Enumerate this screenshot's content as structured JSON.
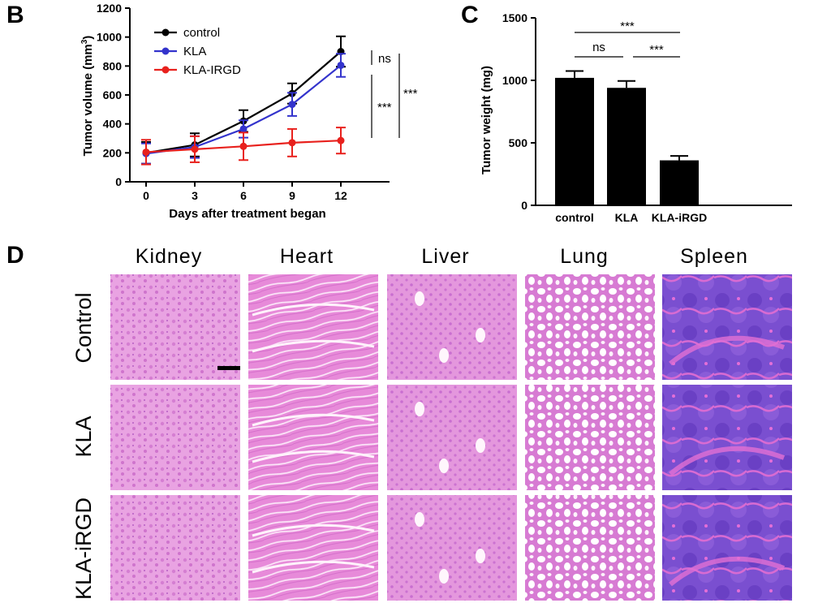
{
  "panels": {
    "B": {
      "letter": "B",
      "chart_data": {
        "type": "line",
        "x": [
          0,
          3,
          6,
          9,
          12
        ],
        "xticks": [
          "0",
          "3",
          "6",
          "9",
          "12"
        ],
        "xlim": [
          -1,
          15
        ],
        "ylim": [
          0,
          1200
        ],
        "yticks": [
          "0",
          "200",
          "400",
          "600",
          "800",
          "1000",
          "1200"
        ],
        "xlabel": "Days after treatment began",
        "ylabel": "Tumor volume (mm",
        "ylabel_sup": "3",
        "ylabel_close": ")",
        "legend_position": "top-left",
        "series": [
          {
            "name": "control",
            "color": "#000000",
            "values": [
              200,
              255,
              420,
              610,
              900
            ],
            "errors": [
              75,
              80,
              75,
              70,
              105
            ]
          },
          {
            "name": "KLA",
            "color": "#3333cc",
            "values": [
              195,
              240,
              365,
              535,
              805
            ],
            "errors": [
              70,
              75,
              60,
              80,
              80
            ]
          },
          {
            "name": "KLA-IRGD",
            "color": "#e8211d",
            "values": [
              205,
              225,
              245,
              270,
              285
            ],
            "errors": [
              85,
              90,
              95,
              95,
              90
            ]
          }
        ],
        "annotations": [
          {
            "text": "ns",
            "between": [
              "control",
              "KLA"
            ]
          },
          {
            "text": "***",
            "between": [
              "KLA",
              "KLA-IRGD"
            ]
          },
          {
            "text": "***",
            "between": [
              "control",
              "KLA-IRGD"
            ]
          }
        ]
      }
    },
    "C": {
      "letter": "C",
      "chart_data": {
        "type": "bar",
        "categories": [
          "control",
          "KLA",
          "KLA-iRGD"
        ],
        "values": [
          1020,
          940,
          360
        ],
        "errors": [
          55,
          55,
          35
        ],
        "ylim": [
          0,
          1500
        ],
        "yticks": [
          "0",
          "500",
          "1000",
          "1500"
        ],
        "ylabel": "Tumor weight (mg)",
        "bar_color": "#000000",
        "annotations": [
          {
            "text": "***",
            "between": [
              "control",
              "KLA-iRGD"
            ]
          },
          {
            "text": "ns",
            "between": [
              "control",
              "KLA"
            ]
          },
          {
            "text": "***",
            "between": [
              "KLA",
              "KLA-iRGD"
            ]
          }
        ]
      }
    },
    "D": {
      "letter": "D",
      "columns": [
        "Kidney",
        "Heart",
        "Liver",
        "Lung",
        "Spleen"
      ],
      "rows": [
        "Control",
        "KLA",
        "KLA-iRGD"
      ]
    }
  },
  "colors": {
    "he_pink": "#e58ad8",
    "he_purple": "#8a5ad6",
    "he_light": "#f6d9f1",
    "he_dark": "#5c3fb5"
  }
}
